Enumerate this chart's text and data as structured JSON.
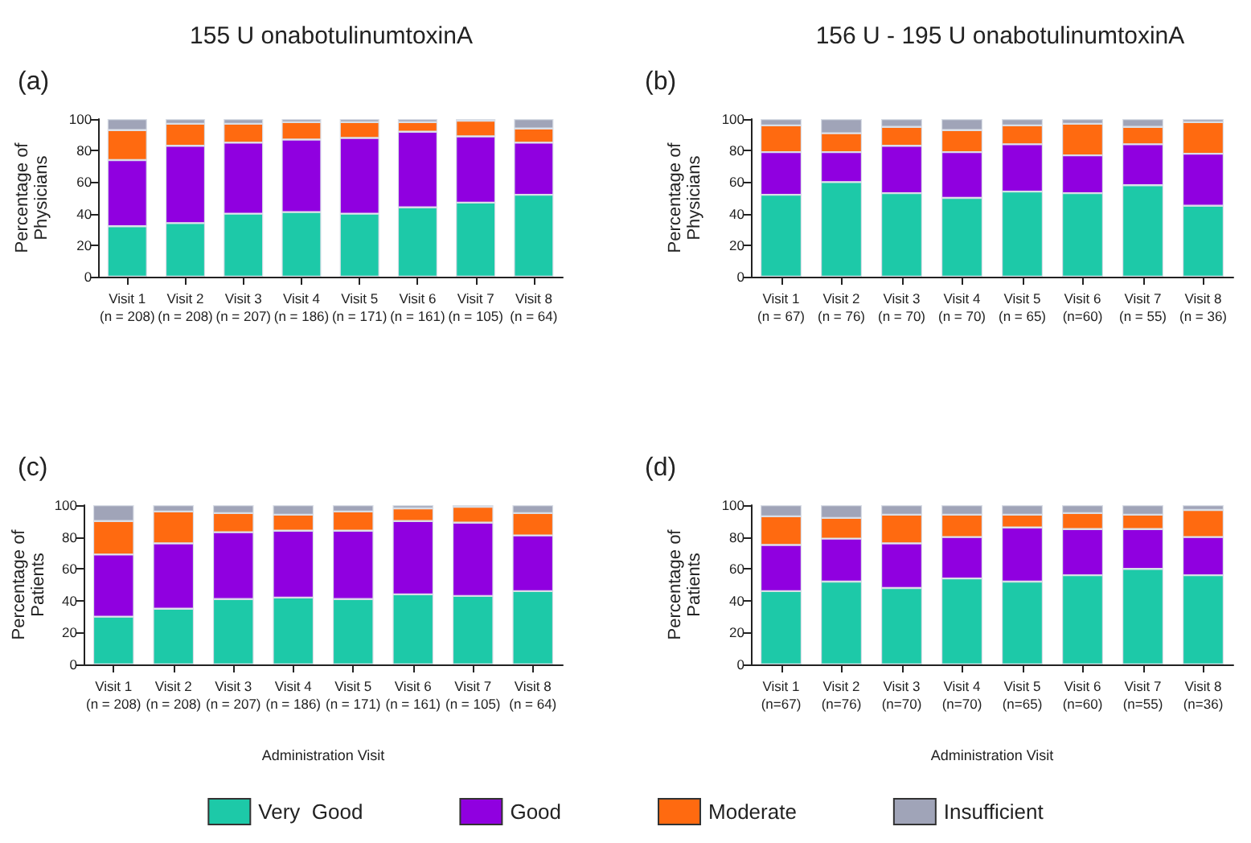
{
  "chart_data": [
    {
      "type": "bar",
      "stacked": true,
      "title": "155 U onabotulinumtoxinA",
      "annotations": [
        "(a)"
      ],
      "ylabel": "Percentage of\nPhysicians",
      "categories": [
        "Visit 1\n(n = 208)",
        "Visit 2\n(n = 208)",
        "Visit 3\n(n = 207)",
        "Visit 4\n(n = 186)",
        "Visit 5\n(n = 171)",
        "Visit 6\n(n = 161)",
        "Visit 7\n(n = 105)",
        "Visit 8\n(n = 64)"
      ],
      "ylim": [
        0,
        100
      ],
      "yticks": [
        0,
        20,
        40,
        60,
        80,
        100
      ],
      "grid": false,
      "legend": false,
      "series": [
        {
          "color": "#1dc9a8",
          "values": [
            32,
            34,
            40,
            41,
            40,
            44,
            47,
            52
          ]
        },
        {
          "color": "#9000e0",
          "values": [
            42,
            49,
            45,
            46,
            48,
            48,
            42,
            33
          ]
        },
        {
          "color": "#ff6a10",
          "values": [
            19,
            14,
            12,
            11,
            10,
            6,
            10,
            9
          ]
        },
        {
          "color": "#a0a4b8",
          "values": [
            7,
            3,
            3,
            2,
            2,
            2,
            1,
            6
          ]
        }
      ]
    },
    {
      "type": "bar",
      "stacked": true,
      "title": "156 U - 195 U onabotulinumtoxinA",
      "annotations": [
        "(b)"
      ],
      "ylabel": "Percentage of\nPhysicians",
      "categories": [
        "Visit 1\n(n = 67)",
        "Visit 2\n(n = 76)",
        "Visit 3\n(n = 70)",
        "Visit 4\n(n = 70)",
        "Visit 5\n(n = 65)",
        "Visit 6\n(n=60)",
        "Visit 7\n(n = 55)",
        "Visit 8\n(n = 36)"
      ],
      "ylim": [
        0,
        100
      ],
      "yticks": [
        0,
        20,
        40,
        60,
        80,
        100
      ],
      "grid": false,
      "legend": false,
      "series": [
        {
          "color": "#1dc9a8",
          "values": [
            52,
            60,
            53,
            50,
            54,
            53,
            58,
            45
          ]
        },
        {
          "color": "#9000e0",
          "values": [
            27,
            19,
            30,
            29,
            30,
            24,
            26,
            33
          ]
        },
        {
          "color": "#ff6a10",
          "values": [
            17,
            12,
            12,
            14,
            12,
            20,
            11,
            20
          ]
        },
        {
          "color": "#a0a4b8",
          "values": [
            4,
            9,
            5,
            7,
            4,
            3,
            5,
            2
          ]
        }
      ]
    },
    {
      "type": "bar",
      "stacked": true,
      "annotations": [
        "(c)"
      ],
      "ylabel": "Percentage of\nPatients",
      "xlabel": "Administration Visit",
      "categories": [
        "Visit 1\n(n = 208)",
        "Visit 2\n(n = 208)",
        "Visit 3\n(n = 207)",
        "Visit 4\n(n = 186)",
        "Visit 5\n(n = 171)",
        "Visit 6\n(n = 161)",
        "Visit 7\n(n = 105)",
        "Visit 8\n(n = 64)"
      ],
      "ylim": [
        0,
        100
      ],
      "yticks": [
        0,
        20,
        40,
        60,
        80,
        100
      ],
      "grid": false,
      "legend": "bottom",
      "series": [
        {
          "name": "Very  Good",
          "color": "#1dc9a8",
          "values": [
            30,
            35,
            41,
            42,
            41,
            44,
            43,
            46
          ]
        },
        {
          "name": "Good",
          "color": "#9000e0",
          "values": [
            39,
            41,
            42,
            42,
            43,
            46,
            46,
            35
          ]
        },
        {
          "name": "Moderate",
          "color": "#ff6a10",
          "values": [
            21,
            20,
            12,
            10,
            12,
            8,
            10,
            14
          ]
        },
        {
          "name": "Insufficient",
          "color": "#a0a4b8",
          "values": [
            10,
            4,
            5,
            6,
            4,
            2,
            1,
            5
          ]
        }
      ]
    },
    {
      "type": "bar",
      "stacked": true,
      "annotations": [
        "(d)"
      ],
      "ylabel": "Percentage of\nPatients",
      "xlabel": "Administration Visit",
      "categories": [
        "Visit 1\n(n=67)",
        "Visit 2\n(n=76)",
        "Visit 3\n(n=70)",
        "Visit 4\n(n=70)",
        "Visit 5\n(n=65)",
        "Visit 6\n(n=60)",
        "Visit 7\n(n=55)",
        "Visit 8\n(n=36)"
      ],
      "ylim": [
        0,
        100
      ],
      "yticks": [
        0,
        20,
        40,
        60,
        80,
        100
      ],
      "grid": false,
      "legend": false,
      "series": [
        {
          "color": "#1dc9a8",
          "values": [
            46,
            52,
            48,
            54,
            52,
            56,
            60,
            56
          ]
        },
        {
          "color": "#9000e0",
          "values": [
            29,
            27,
            28,
            26,
            34,
            29,
            25,
            24
          ]
        },
        {
          "color": "#ff6a10",
          "values": [
            18,
            13,
            18,
            14,
            8,
            10,
            9,
            17
          ]
        },
        {
          "color": "#a0a4b8",
          "values": [
            7,
            8,
            6,
            6,
            6,
            5,
            6,
            3
          ]
        }
      ]
    }
  ]
}
